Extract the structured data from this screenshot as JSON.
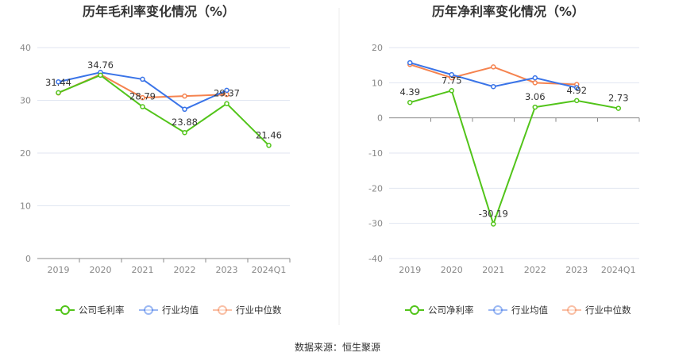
{
  "source": "数据来源：恒生聚源",
  "colors": {
    "company": "#52c41a",
    "avg": "#3a74e8",
    "median": "#f5834f"
  },
  "chart_data": [
    {
      "type": "line",
      "title": "历年毛利率变化情况（%）",
      "categories": [
        "2019",
        "2020",
        "2021",
        "2022",
        "2023",
        "2024Q1"
      ],
      "ylim": [
        0,
        40
      ],
      "yticks": [
        0,
        10,
        20,
        30,
        40
      ],
      "grid": true,
      "legend": "bottom",
      "series": [
        {
          "name": "公司毛利率",
          "values": [
            31.44,
            34.76,
            28.79,
            23.88,
            29.37,
            21.46
          ],
          "labels": [
            "31.44",
            "34.76",
            "28.79",
            "23.88",
            "29.37",
            "21.46"
          ]
        },
        {
          "name": "行业均值",
          "values": [
            33.5,
            35.3,
            34.0,
            28.3,
            31.9,
            null
          ]
        },
        {
          "name": "行业中位数",
          "values": [
            31.4,
            34.9,
            30.5,
            30.8,
            31.1,
            null
          ]
        }
      ]
    },
    {
      "type": "line",
      "title": "历年净利率变化情况（%）",
      "categories": [
        "2019",
        "2020",
        "2021",
        "2022",
        "2023",
        "2024Q1"
      ],
      "ylim": [
        -40,
        20
      ],
      "yticks": [
        -40,
        -30,
        -20,
        -10,
        0,
        10,
        20
      ],
      "grid": true,
      "legend": "bottom",
      "series": [
        {
          "name": "公司净利率",
          "values": [
            4.39,
            7.75,
            -30.19,
            3.06,
            4.92,
            2.73
          ],
          "labels": [
            "4.39",
            "7.75",
            "-30.19",
            "3.06",
            "4.92",
            "2.73"
          ]
        },
        {
          "name": "行业均值",
          "values": [
            15.7,
            12.3,
            8.9,
            11.4,
            8.6,
            null
          ]
        },
        {
          "name": "行业中位数",
          "values": [
            15.2,
            11.4,
            14.5,
            10.0,
            9.5,
            null
          ]
        }
      ]
    }
  ]
}
